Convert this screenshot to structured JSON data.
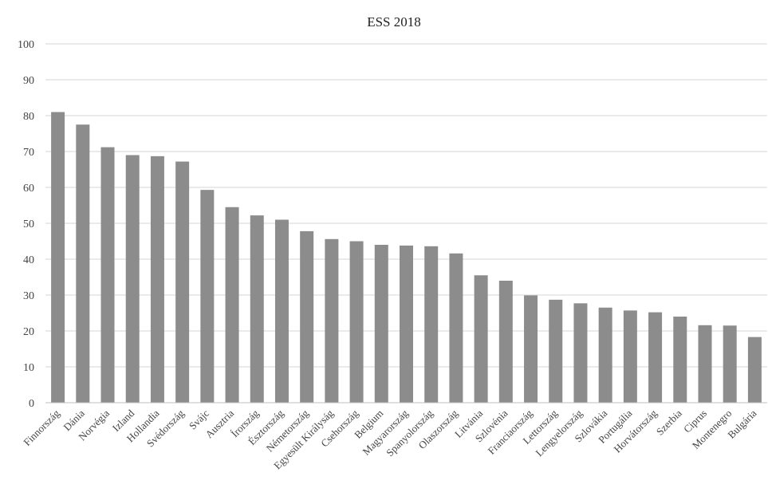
{
  "chart_data": {
    "type": "bar",
    "title": "ESS 2018",
    "xlabel": "",
    "ylabel": "",
    "ylim": [
      0,
      100
    ],
    "yticks": [
      0,
      10,
      20,
      30,
      40,
      50,
      60,
      70,
      80,
      90,
      100
    ],
    "grid": true,
    "legend": "none",
    "bar_color": "#8c8c8c",
    "categories": [
      "Finnország",
      "Dánia",
      "Norvégia",
      "Izland",
      "Hollandia",
      "Svédország",
      "Svájc",
      "Ausztria",
      "Írország",
      "Észtország",
      "Németország",
      "Egyesült Királyság",
      "Csehország",
      "Belgium",
      "Magyarország",
      "Spanyolország",
      "Olaszország",
      "Litvánia",
      "Szlovénia",
      "Franciaország",
      "Lettország",
      "Lengyelország",
      "Szlovákia",
      "Portugália",
      "Horvátország",
      "Szerbia",
      "Ciprus",
      "Montenegro",
      "Bulgária"
    ],
    "values": [
      81,
      77.5,
      71.2,
      69,
      68.7,
      67.2,
      59.3,
      54.5,
      52.2,
      51,
      47.8,
      45.6,
      45,
      44,
      43.8,
      43.6,
      41.6,
      35.5,
      34,
      29.9,
      28.7,
      27.7,
      26.5,
      25.7,
      25.2,
      24,
      21.6,
      21.5,
      18.3
    ]
  }
}
